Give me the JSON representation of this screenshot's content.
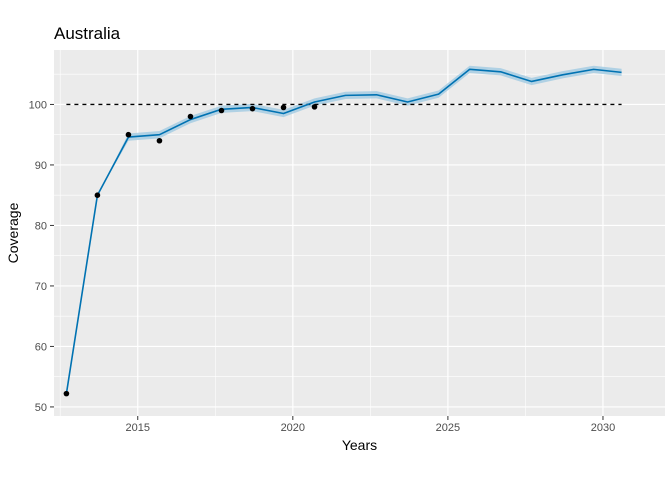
{
  "chart_data": {
    "type": "line",
    "title": "Australia",
    "xlabel": "Years",
    "ylabel": "Coverage",
    "xlim": [
      2012.3,
      2032.0
    ],
    "ylim": [
      48.5,
      109.0
    ],
    "x_ticks": [
      2015,
      2020,
      2025,
      2030
    ],
    "x_tick_labels": [
      "2015",
      "2020",
      "2025",
      "2030"
    ],
    "y_ticks": [
      50,
      60,
      70,
      80,
      90,
      100
    ],
    "y_tick_labels": [
      "50",
      "60",
      "70",
      "80",
      "90",
      "100"
    ],
    "x_minor_ticks": [
      2012.5,
      2017.5,
      2022.5,
      2027.5
    ],
    "y_minor_ticks": [
      55,
      65,
      75,
      85,
      95,
      105
    ],
    "grid": true,
    "reference_line": {
      "y": 100,
      "x": [
        2012.7,
        2030.6
      ],
      "style": "dashed"
    },
    "colors": {
      "panel": "#ebebeb",
      "grid": "#ffffff",
      "line": "#0072b2",
      "band": "#a6cde3",
      "points": "#000000",
      "reference": "#000000"
    },
    "series": [
      {
        "type": "observed-points",
        "x": [
          2012.7,
          2013.7,
          2014.7,
          2015.7,
          2016.7,
          2017.7,
          2018.7,
          2019.7,
          2020.7
        ],
        "y": [
          52.2,
          85.0,
          95.0,
          94.0,
          98.0,
          99.0,
          99.3,
          99.5,
          99.6
        ]
      },
      {
        "type": "fitted-line",
        "x": [
          2012.7,
          2013.7,
          2014.7,
          2015.7,
          2016.7,
          2017.7,
          2018.7,
          2019.7,
          2020.7,
          2021.7,
          2022.7,
          2023.7,
          2024.7,
          2025.7,
          2026.7,
          2027.7,
          2028.7,
          2029.7,
          2030.6
        ],
        "y": [
          52.2,
          85.0,
          94.6,
          95.0,
          97.5,
          99.2,
          99.5,
          98.5,
          100.4,
          101.5,
          101.6,
          100.4,
          101.7,
          105.8,
          105.4,
          103.8,
          104.9,
          105.8,
          105.3
        ],
        "lower": [
          52.2,
          85.0,
          94.0,
          94.4,
          96.9,
          98.6,
          98.9,
          97.9,
          99.8,
          100.9,
          101.0,
          99.8,
          101.1,
          105.2,
          104.8,
          103.2,
          104.3,
          105.2,
          104.7
        ],
        "upper": [
          52.2,
          85.0,
          95.2,
          95.6,
          98.1,
          99.8,
          100.1,
          99.1,
          101.0,
          102.1,
          102.2,
          101.0,
          102.3,
          106.4,
          106.0,
          104.4,
          105.5,
          106.4,
          105.9
        ]
      }
    ]
  }
}
